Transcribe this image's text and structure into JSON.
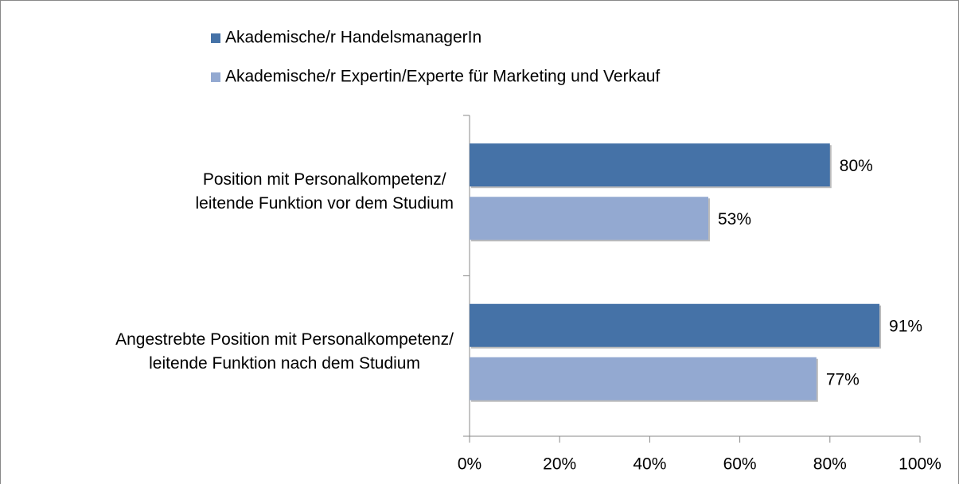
{
  "chart_data": {
    "type": "hbar",
    "categories": [
      "Position mit Personalkompetenz/\nleitende Funktion vor dem Studium",
      "Angestrebte Position mit Personalkompetenz/\nleitende Funktion nach dem Studium"
    ],
    "series": [
      {
        "name": "Akademische/r HandelsmanagerIn",
        "color": "#4572a7",
        "values": [
          80,
          91
        ],
        "value_labels": [
          "80%",
          "91%"
        ]
      },
      {
        "name": "Akademische/r Expertin/Experte für Marketing und Verkauf",
        "color": "#93a9d1",
        "values": [
          53,
          77
        ],
        "value_labels": [
          "53%",
          "77%"
        ]
      }
    ],
    "xlim": [
      0,
      100
    ],
    "xticks": [
      {
        "value": 0,
        "label": "0%"
      },
      {
        "value": 20,
        "label": "20%"
      },
      {
        "value": 40,
        "label": "40%"
      },
      {
        "value": 60,
        "label": "60%"
      },
      {
        "value": 80,
        "label": "80%"
      },
      {
        "value": 100,
        "label": "100%"
      }
    ],
    "legend": "top"
  }
}
